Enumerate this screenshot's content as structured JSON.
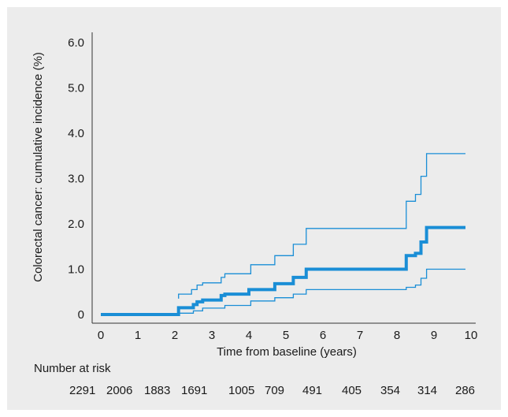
{
  "chart_data": {
    "type": "line",
    "title": "",
    "xlabel": "Time from baseline (years)",
    "ylabel": "Colorectal cancer: cumulative incidence (%)",
    "xlim": [
      0,
      10
    ],
    "ylim": [
      0,
      6.0
    ],
    "x_ticks": [
      "0",
      "1",
      "2",
      "3",
      "4",
      "5",
      "6",
      "7",
      "8",
      "9",
      "10"
    ],
    "y_ticks": [
      "0",
      "1.0",
      "2.0",
      "3.0",
      "4.0",
      "5.0",
      "6.0"
    ],
    "grid": false,
    "line_color": "#1a8ed6",
    "series": [
      {
        "role": "estimate",
        "x": [
          0,
          2.1,
          2.1,
          2.5,
          2.5,
          2.6,
          2.6,
          2.75,
          2.75,
          3.25,
          3.25,
          3.35,
          3.35,
          4.0,
          4.0,
          4.7,
          4.7,
          5.2,
          5.2,
          5.55,
          5.55,
          8.25,
          8.25,
          8.5,
          8.5,
          8.65,
          8.65,
          8.8,
          8.8,
          9.85
        ],
        "y": [
          0,
          0,
          0.15,
          0.15,
          0.22,
          0.22,
          0.28,
          0.28,
          0.32,
          0.32,
          0.42,
          0.42,
          0.45,
          0.45,
          0.55,
          0.55,
          0.68,
          0.68,
          0.82,
          0.82,
          1.0,
          1.0,
          1.3,
          1.3,
          1.35,
          1.35,
          1.6,
          1.6,
          1.92,
          1.92
        ]
      },
      {
        "role": "upper-ci",
        "x": [
          2.1,
          2.1,
          2.45,
          2.45,
          2.6,
          2.6,
          2.75,
          2.75,
          3.25,
          3.25,
          3.35,
          3.35,
          4.05,
          4.05,
          4.7,
          4.7,
          5.2,
          5.2,
          5.55,
          5.55,
          8.25,
          8.25,
          8.5,
          8.5,
          8.65,
          8.65,
          8.8,
          8.8,
          9.85
        ],
        "y": [
          0.35,
          0.45,
          0.45,
          0.55,
          0.55,
          0.65,
          0.65,
          0.7,
          0.7,
          0.82,
          0.82,
          0.9,
          0.9,
          1.1,
          1.1,
          1.3,
          1.3,
          1.55,
          1.55,
          1.9,
          1.9,
          2.5,
          2.5,
          2.65,
          2.65,
          3.05,
          3.05,
          3.55,
          3.55
        ]
      },
      {
        "role": "lower-ci",
        "x": [
          2.1,
          2.1,
          2.5,
          2.5,
          2.75,
          2.75,
          3.35,
          3.35,
          4.05,
          4.05,
          4.7,
          4.7,
          5.2,
          5.2,
          5.55,
          5.55,
          8.25,
          8.25,
          8.5,
          8.5,
          8.65,
          8.65,
          8.8,
          8.8,
          9.85
        ],
        "y": [
          0,
          0.03,
          0.03,
          0.08,
          0.08,
          0.14,
          0.14,
          0.2,
          0.2,
          0.3,
          0.3,
          0.37,
          0.37,
          0.45,
          0.45,
          0.55,
          0.55,
          0.6,
          0.6,
          0.65,
          0.65,
          0.8,
          0.8,
          1.0,
          1.0
        ]
      }
    ],
    "at_risk": {
      "label": "Number at risk",
      "values": [
        "2291",
        "2006",
        "1883",
        "1691",
        "1005",
        "709",
        "491",
        "405",
        "354",
        "314",
        "286"
      ]
    }
  }
}
